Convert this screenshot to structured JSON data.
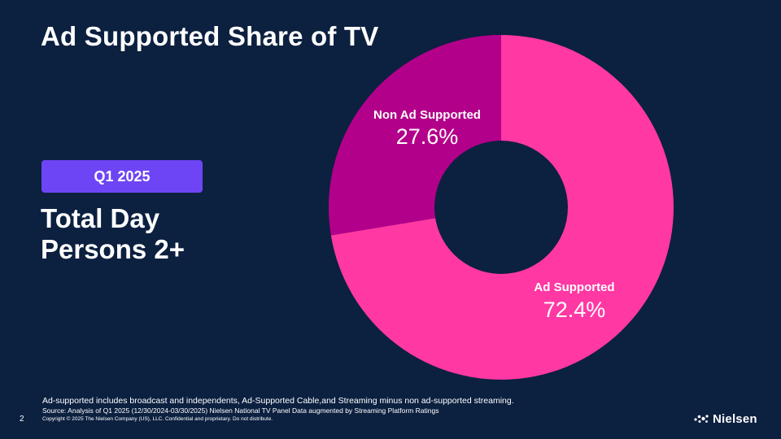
{
  "slide": {
    "title": "Ad Supported Share of TV",
    "badge": "Q1 2025",
    "subtitle_line1": "Total Day",
    "subtitle_line2": "Persons 2+",
    "note": "Ad-supported includes broadcast and independents, Ad-Supported Cable,and Streaming minus non ad-supported streaming.",
    "source": "Source: Analysis of Q1 2025 (12/30/2024-03/30/2025)  Nielsen National TV Panel Data augmented by Streaming Platform Ratings",
    "page_number": "2",
    "copyright": "Copyright © 2025 The Nielsen Company (US), LLC. Confidential and proprietary. Do not distribute.",
    "logo_text": "Nielsen",
    "logo_icon": "nielsen-dots-icon"
  },
  "chart_data": {
    "type": "pie",
    "variant": "donut",
    "title": "",
    "slices": [
      {
        "label": "Ad Supported",
        "value": 72.4,
        "value_label": "72.4%",
        "color": "#ff38a4"
      },
      {
        "label": "Non Ad Supported",
        "value": 27.6,
        "value_label": "27.6%",
        "color": "#b3008a"
      }
    ],
    "start": "12 o'clock",
    "direction": "clockwise"
  },
  "colors": {
    "background": "#0c2040",
    "badge": "#6e45f5",
    "text": "#ffffff"
  }
}
